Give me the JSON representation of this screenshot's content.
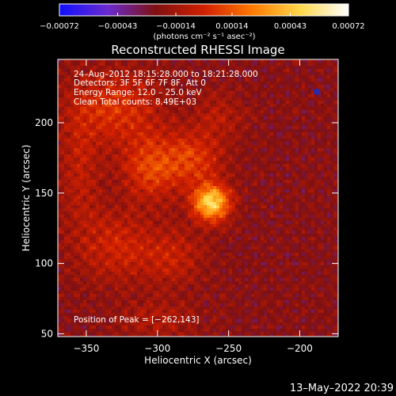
{
  "chart_data": {
    "type": "heatmap",
    "title": "Reconstructed RHESSI Image",
    "xlabel": "Heliocentric X (arcsec)",
    "ylabel": "Heliocentric Y (arcsec)",
    "xlim": [
      -370,
      -173
    ],
    "ylim": [
      48,
      245
    ],
    "xticks": [
      -350,
      -300,
      -250,
      -200
    ],
    "yticks": [
      50,
      100,
      150,
      200
    ],
    "xtick_labels": [
      "−350",
      "−300",
      "−250",
      "−200"
    ],
    "ytick_labels": [
      "50",
      "100",
      "150",
      "200"
    ],
    "colorbar": {
      "min": -0.00072,
      "max": 0.00072,
      "ticks": [
        -0.00072,
        -0.00043,
        -0.00014,
        0.00014,
        0.00043,
        0.00072
      ],
      "tick_labels": [
        "−0.00072",
        "−0.00043",
        "−0.00014",
        "0.00014",
        "0.00043",
        "0.00072"
      ],
      "units": "(photons cm⁻² s⁻¹ asec⁻²)",
      "colors": [
        "#1010ff",
        "#6a2ad0",
        "#7f1010",
        "#d22000",
        "#ff7a00",
        "#ffd84a",
        "#ffffff"
      ]
    },
    "annotations": {
      "time_range": "24–Aug–2012 18:15:28.000 to 18:21:28.000",
      "detectors": "Detectors: 3F 5F 6F 7F 8F, Att 0",
      "energy": "Energy Range: 12.0 – 25.0 keV",
      "method": "Clean    Total counts: 8.49E+03",
      "peak": "Position of Peak = [−262,143]"
    },
    "peak": [
      -262,
      143
    ],
    "sources": [
      {
        "x": -262,
        "y": 143,
        "amp": 0.00072,
        "sx": 9,
        "sy": 9
      },
      {
        "x": -275,
        "y": 175,
        "amp": 0.00028,
        "sx": 14,
        "sy": 14
      },
      {
        "x": -305,
        "y": 168,
        "amp": 0.0003,
        "sx": 14,
        "sy": 16
      },
      {
        "x": -330,
        "y": 210,
        "amp": 0.00026,
        "sx": 22,
        "sy": 18
      },
      {
        "x": -330,
        "y": 112,
        "amp": 0.0002,
        "sx": 18,
        "sy": 18
      },
      {
        "x": -290,
        "y": 105,
        "amp": 0.00018,
        "sx": 16,
        "sy": 14
      },
      {
        "x": -255,
        "y": 205,
        "amp": 0.00012,
        "sx": 12,
        "sy": 12
      },
      {
        "x": -300,
        "y": 60,
        "amp": 0.00012,
        "sx": 20,
        "sy": 10
      },
      {
        "x": -355,
        "y": 165,
        "amp": 0.00015,
        "sx": 10,
        "sy": 30
      }
    ],
    "grid": false
  },
  "footer": {
    "date_stamp": "13–May–2022 20:39"
  }
}
